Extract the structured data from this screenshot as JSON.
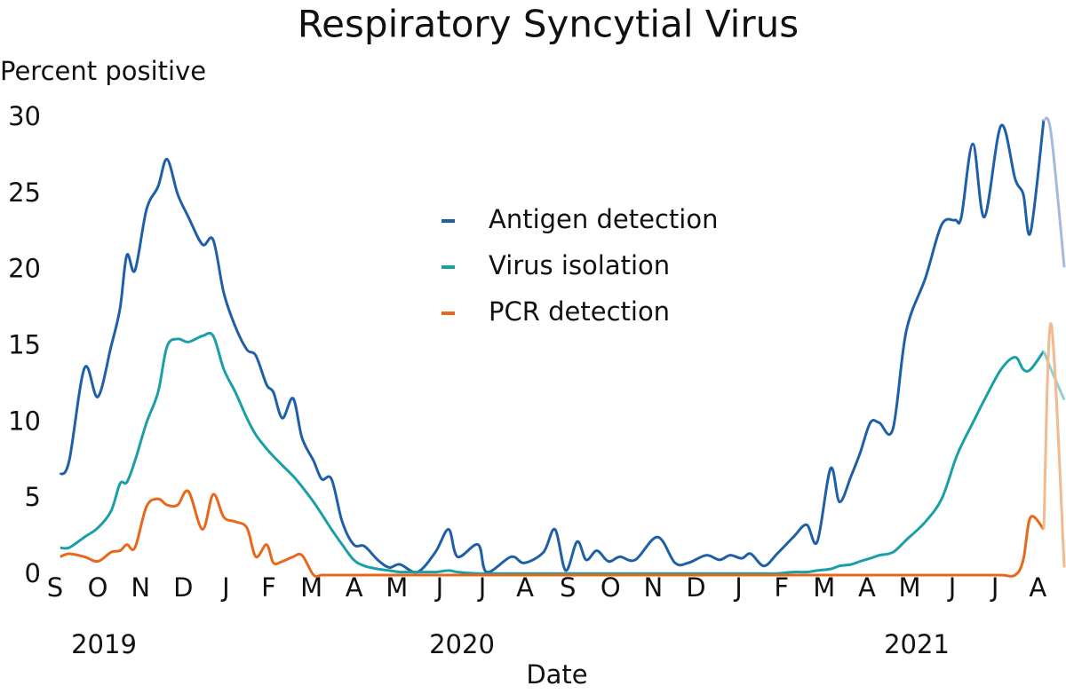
{
  "chart_data": {
    "type": "line",
    "title": "Respiratory Syncytial Virus",
    "y_label": "Percent positive",
    "x_label": "Date",
    "year_labels": [
      "2019",
      "2020",
      "2021"
    ],
    "xlim": [
      0,
      23.66
    ],
    "ylim": [
      0,
      30
    ],
    "yticks": [
      0,
      5,
      10,
      15,
      20,
      25,
      30
    ],
    "xticks": [
      {
        "value": 0,
        "label": "S"
      },
      {
        "value": 1,
        "label": "O"
      },
      {
        "value": 2,
        "label": "N"
      },
      {
        "value": 3,
        "label": "D"
      },
      {
        "value": 4,
        "label": "J"
      },
      {
        "value": 5,
        "label": "F"
      },
      {
        "value": 6,
        "label": "M"
      },
      {
        "value": 7,
        "label": "A"
      },
      {
        "value": 8,
        "label": "M"
      },
      {
        "value": 9,
        "label": "J"
      },
      {
        "value": 10,
        "label": "J"
      },
      {
        "value": 11,
        "label": "A"
      },
      {
        "value": 12,
        "label": "S"
      },
      {
        "value": 13,
        "label": "O"
      },
      {
        "value": 14,
        "label": "N"
      },
      {
        "value": 15,
        "label": "D"
      },
      {
        "value": 16,
        "label": "J"
      },
      {
        "value": 17,
        "label": "F"
      },
      {
        "value": 18,
        "label": "M"
      },
      {
        "value": 19,
        "label": "A"
      },
      {
        "value": 20,
        "label": "M"
      },
      {
        "value": 21,
        "label": "J"
      },
      {
        "value": 22,
        "label": "J"
      },
      {
        "value": 23,
        "label": "A"
      }
    ],
    "grid": false,
    "legend": "upper center",
    "provisional_from_x": 23.14,
    "x": [
      0.12,
      0.33,
      0.69,
      1.0,
      1.31,
      1.52,
      1.68,
      1.87,
      2.14,
      2.41,
      2.62,
      2.87,
      3.12,
      3.45,
      3.7,
      3.95,
      4.22,
      4.49,
      4.7,
      4.95,
      5.11,
      5.32,
      5.57,
      5.78,
      6.05,
      6.24,
      6.47,
      6.72,
      6.99,
      7.24,
      7.55,
      7.82,
      8.07,
      8.48,
      8.9,
      9.21,
      9.42,
      9.9,
      10.1,
      10.67,
      10.98,
      11.43,
      11.7,
      11.95,
      12.22,
      12.43,
      12.68,
      12.95,
      13.22,
      13.58,
      14.1,
      14.51,
      14.82,
      15.24,
      15.55,
      15.8,
      16.07,
      16.28,
      16.59,
      16.9,
      17.28,
      17.59,
      17.84,
      18.15,
      18.36,
      18.63,
      18.84,
      19.08,
      19.29,
      19.61,
      19.92,
      20.37,
      20.75,
      21.06,
      21.21,
      21.48,
      21.75,
      22.14,
      22.47,
      22.66,
      22.83,
      23.14,
      23.31,
      23.62
    ],
    "series": [
      {
        "name": "Antigen detection",
        "color": "#1f5fa8",
        "provisional_color": "#a3bade",
        "values": [
          6.6,
          7.5,
          13.6,
          11.7,
          15,
          17.5,
          21,
          20,
          24,
          25.5,
          27.3,
          25,
          23.5,
          21.7,
          22,
          18.5,
          16.3,
          14.8,
          14.4,
          12.5,
          12,
          10.3,
          11.6,
          9,
          7.5,
          6.3,
          6.3,
          3.5,
          2,
          1.9,
          1,
          0.5,
          0.7,
          0.2,
          1.5,
          3,
          1.2,
          2,
          0.2,
          1.2,
          0.8,
          1.5,
          3,
          0.3,
          2.2,
          1,
          1.6,
          0.9,
          1.2,
          1,
          2.5,
          0.8,
          0.8,
          1.3,
          1,
          1.3,
          1.1,
          1.4,
          0.6,
          1.4,
          2.5,
          3.3,
          2.2,
          7,
          4.8,
          6.5,
          8,
          10,
          10,
          9.6,
          16,
          19.5,
          23,
          23.3,
          23.5,
          28.3,
          23.5,
          29.5,
          26,
          25,
          22.5,
          29.9,
          29,
          20.2
        ]
      },
      {
        "name": "Virus isolation",
        "color": "#1a9fa6",
        "provisional_color": "#8fd0d4",
        "values": [
          1.8,
          1.8,
          2.5,
          3.1,
          4.2,
          6,
          6.1,
          7.5,
          10,
          12,
          15,
          15.5,
          15.3,
          15.7,
          15.7,
          13.5,
          12,
          10.3,
          9.2,
          8.3,
          7.8,
          7.2,
          6.5,
          5.8,
          4.8,
          4,
          3,
          2,
          1,
          0.6,
          0.4,
          0.3,
          0.2,
          0.2,
          0.2,
          0.3,
          0.2,
          0.1,
          0.1,
          0.1,
          0.1,
          0.1,
          0.1,
          0.1,
          0.1,
          0.1,
          0.1,
          0.1,
          0.1,
          0.1,
          0.1,
          0.1,
          0.1,
          0.1,
          0.1,
          0.1,
          0.1,
          0.1,
          0.1,
          0.1,
          0.2,
          0.2,
          0.3,
          0.4,
          0.6,
          0.7,
          0.9,
          1.1,
          1.3,
          1.5,
          2.3,
          3.5,
          5,
          7.5,
          8.5,
          10,
          11.5,
          13.5,
          14.3,
          13.5,
          13.5,
          14.7,
          13.5,
          11.5
        ]
      },
      {
        "name": "PCR detection",
        "color": "#e8671a",
        "provisional_color": "#f3b98f",
        "values": [
          1.2,
          1.4,
          1.2,
          0.9,
          1.5,
          1.6,
          2,
          1.8,
          4.5,
          5,
          4.6,
          4.6,
          5.5,
          3,
          5.3,
          3.8,
          3.5,
          3.1,
          1.2,
          2,
          0.8,
          0.9,
          1.2,
          1.3,
          0,
          0,
          0,
          0,
          0,
          0,
          0,
          0,
          0,
          0,
          0,
          0,
          0,
          0,
          0,
          0,
          0,
          0,
          0,
          0,
          0,
          0,
          0,
          0,
          0,
          0,
          0,
          0,
          0,
          0,
          0,
          0,
          0,
          0,
          0,
          0,
          0,
          0,
          0,
          0,
          0,
          0,
          0,
          0,
          0,
          0,
          0,
          0,
          0,
          0,
          0,
          0,
          0,
          0,
          0,
          1,
          3.8,
          3,
          16.5,
          0.5
        ]
      }
    ]
  }
}
